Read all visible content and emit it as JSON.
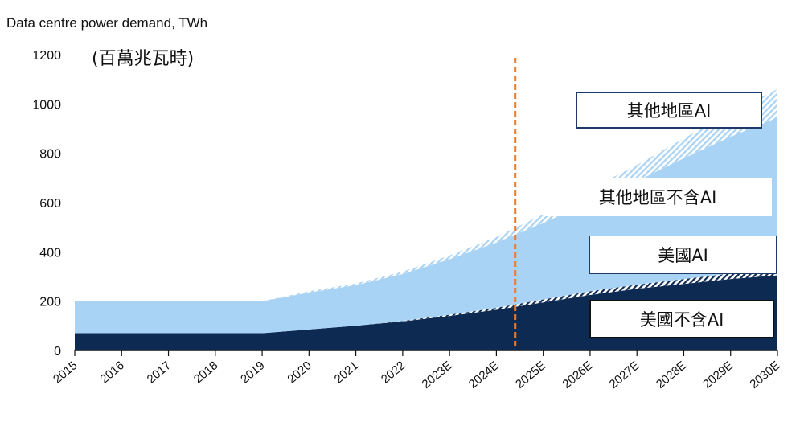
{
  "chart_data": {
    "type": "area",
    "stacked": true,
    "title": "Data centre power demand, TWh",
    "subtitle": "(百萬兆瓦時)",
    "xlabel": "",
    "ylabel": "",
    "ylim": [
      0,
      1200
    ],
    "yticks": [
      0,
      200,
      400,
      600,
      800,
      1000,
      1200
    ],
    "categories": [
      "2015",
      "2016",
      "2017",
      "2018",
      "2019",
      "2020",
      "2021",
      "2022",
      "2023E",
      "2024E",
      "2025E",
      "2026E",
      "2027E",
      "2028E",
      "2029E",
      "2030E"
    ],
    "series": [
      {
        "name": "美國不含AI",
        "color": "#0d2b52",
        "values": [
          70,
          70,
          70,
          70,
          70,
          85,
          100,
          118,
          140,
          165,
          195,
          225,
          250,
          270,
          290,
          305
        ]
      },
      {
        "name": "美國AI",
        "color": "#0d2b52",
        "pattern": "hatched",
        "values": [
          0,
          0,
          0,
          0,
          0,
          0,
          0,
          2,
          5,
          8,
          12,
          15,
          17,
          20,
          22,
          25
        ]
      },
      {
        "name": "其他地區不含AI",
        "color": "#a9d3f5",
        "values": [
          130,
          130,
          130,
          130,
          130,
          150,
          165,
          190,
          225,
          265,
          310,
          365,
          420,
          490,
          555,
          615
        ]
      },
      {
        "name": "其他地區AI",
        "color": "#a9d3f5",
        "pattern": "hatched",
        "values": [
          0,
          0,
          0,
          0,
          0,
          5,
          7,
          10,
          15,
          22,
          35,
          50,
          65,
          80,
          100,
          115
        ]
      }
    ],
    "annotations": [
      {
        "type": "vertical-dashed-line",
        "x": "2024E",
        "offset": 0.4,
        "color": "#f07a2a"
      }
    ],
    "grid": false,
    "legend": "inline"
  }
}
